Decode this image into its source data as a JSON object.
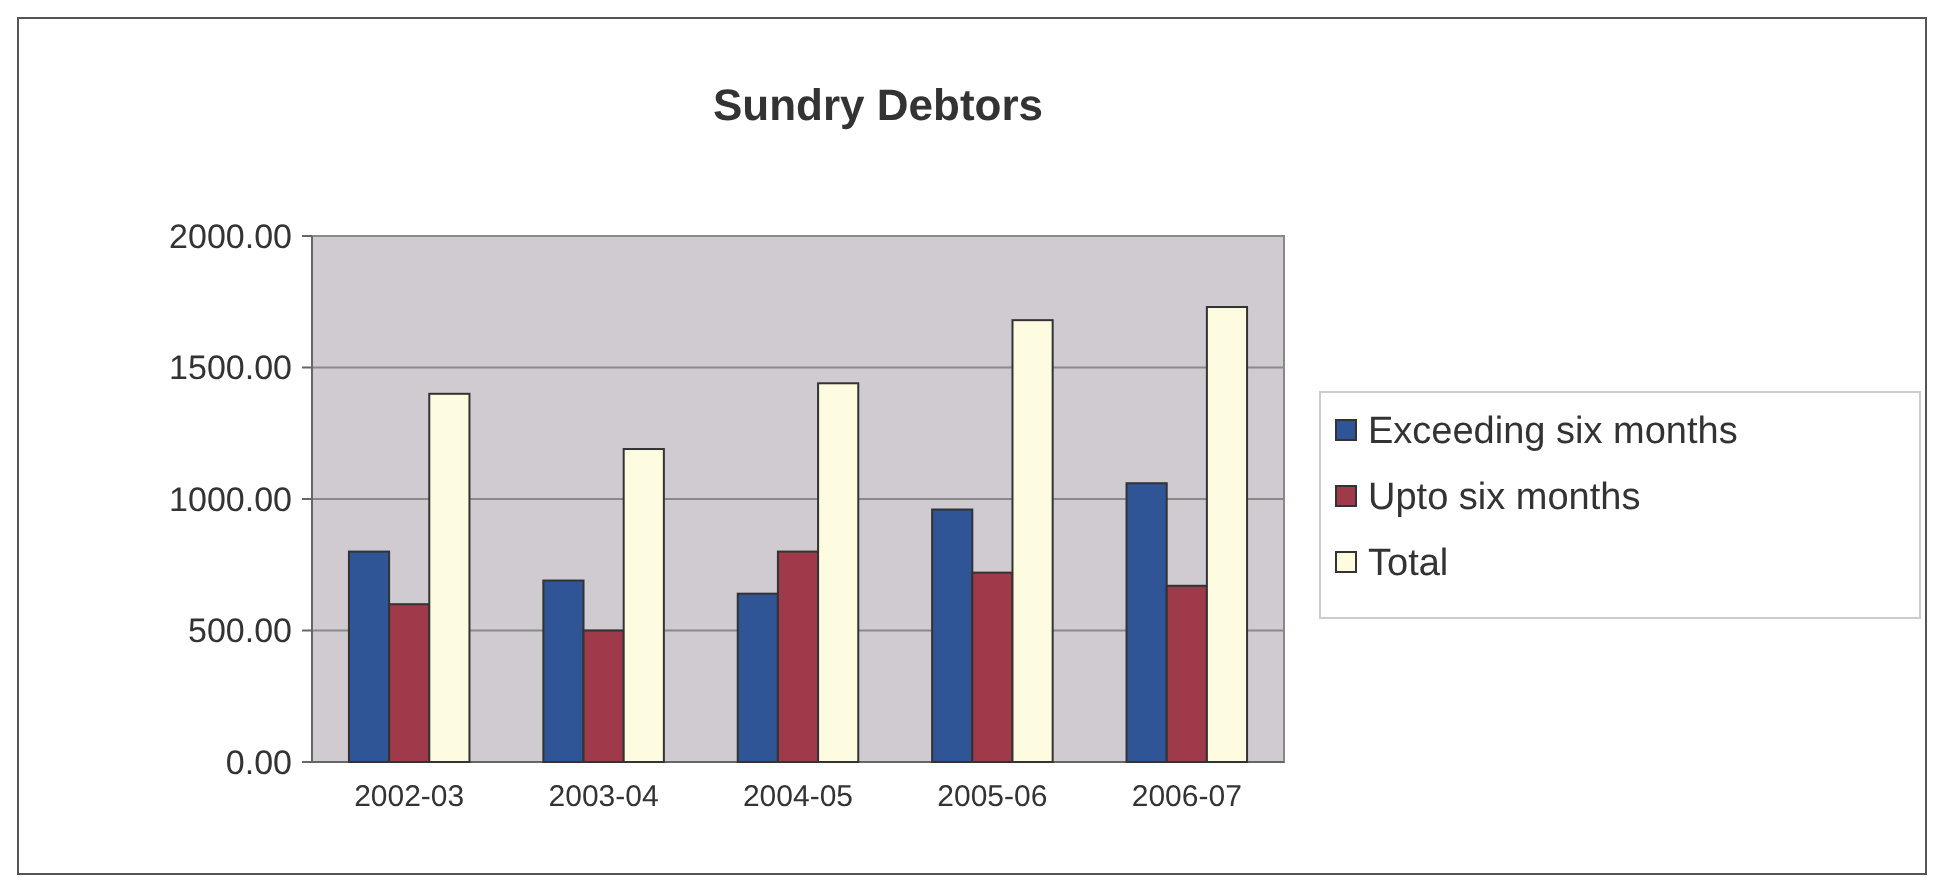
{
  "chart_data": {
    "type": "bar",
    "title": "Sundry Debtors",
    "categories": [
      "2002-03",
      "2003-04",
      "2004-05",
      "2005-06",
      "2006-07"
    ],
    "series": [
      {
        "name": "Exceeding six months",
        "color": "#2f5597",
        "values": [
          800,
          690,
          640,
          960,
          1060
        ]
      },
      {
        "name": "Upto six months",
        "color": "#9e3a4a",
        "values": [
          600,
          500,
          800,
          720,
          670
        ]
      },
      {
        "name": "Total",
        "color": "#fdfbe0",
        "values": [
          1400,
          1190,
          1440,
          1680,
          1730
        ]
      }
    ],
    "ylim": [
      0,
      2000
    ],
    "yticks": [
      {
        "value": 0,
        "label": "0.00"
      },
      {
        "value": 500,
        "label": "500.00"
      },
      {
        "value": 1000,
        "label": "1000.00"
      },
      {
        "value": 1500,
        "label": "1500.00"
      },
      {
        "value": 2000,
        "label": "2000.00"
      }
    ],
    "grid": "y",
    "legend": "right"
  }
}
